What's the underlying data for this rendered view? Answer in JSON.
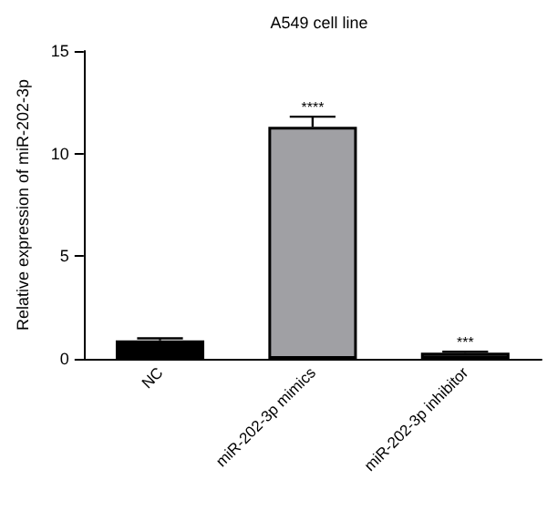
{
  "chart_data": {
    "type": "bar",
    "title": "A549 cell line",
    "ylabel": "Relative expression of miR-202-3p",
    "categories": [
      "NC",
      "miR-202-3p mimics",
      "miR-202-3p inhibitor"
    ],
    "values": [
      0.9,
      11.3,
      0.3
    ],
    "errors": [
      0.1,
      0.5,
      0.05
    ],
    "colors": [
      "#000000",
      "#a0a0a4",
      "#2a2a2a"
    ],
    "ylim": [
      0,
      15
    ],
    "yticks": [
      0,
      5,
      10,
      15
    ],
    "grid": false,
    "annotations": [
      {
        "text": "****",
        "x": "miR-202-3p mimics",
        "y": 11.8
      },
      {
        "text": "***",
        "x": "miR-202-3p inhibitor",
        "y": 0.35
      }
    ]
  }
}
